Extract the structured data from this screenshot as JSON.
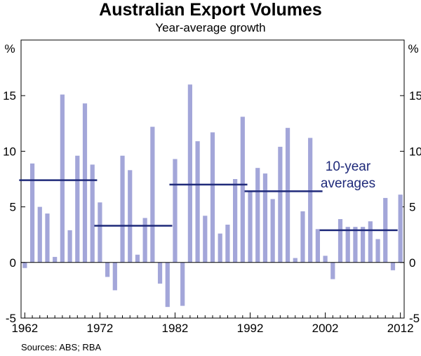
{
  "chart_data": {
    "type": "bar",
    "title": "Australian Export Volumes",
    "subtitle": "Year-average growth",
    "ylabel_left": "%",
    "ylabel_right": "%",
    "ylim": [
      -5,
      20
    ],
    "yticks": [
      -5,
      0,
      5,
      10,
      15
    ],
    "xlim": [
      1961.5,
      2012.5
    ],
    "xticks": [
      1962,
      1972,
      1982,
      1992,
      2002,
      2012
    ],
    "xtick_labels": [
      "1962",
      "1972",
      "1982",
      "1992",
      "2002",
      "2012"
    ],
    "series": [
      {
        "name": "Year-average growth",
        "color": "#a3a6d9",
        "x": [
          1962,
          1963,
          1964,
          1965,
          1966,
          1967,
          1968,
          1969,
          1970,
          1971,
          1972,
          1973,
          1974,
          1975,
          1976,
          1977,
          1978,
          1979,
          1980,
          1981,
          1982,
          1983,
          1984,
          1985,
          1986,
          1987,
          1988,
          1989,
          1990,
          1991,
          1992,
          1993,
          1994,
          1995,
          1996,
          1997,
          1998,
          1999,
          2000,
          2001,
          2002,
          2003,
          2004,
          2005,
          2006,
          2007,
          2008,
          2009,
          2010,
          2011,
          2012
        ],
        "values": [
          -0.5,
          8.9,
          5.0,
          4.4,
          0.5,
          15.1,
          2.9,
          9.6,
          14.3,
          8.8,
          5.4,
          -1.3,
          -2.5,
          9.6,
          8.3,
          0.7,
          4.0,
          12.2,
          -1.9,
          -4.0,
          9.3,
          -3.9,
          16.0,
          10.9,
          4.2,
          11.7,
          2.6,
          3.4,
          7.5,
          13.1,
          6.4,
          8.5,
          8.0,
          5.7,
          10.4,
          12.1,
          0.4,
          4.6,
          11.2,
          3.0,
          0.6,
          -1.5,
          3.9,
          3.2,
          3.2,
          3.2,
          3.7,
          2.1,
          5.8,
          -0.7,
          6.1
        ]
      },
      {
        "name": "10-year averages",
        "color": "#1f2a7a",
        "segments": [
          {
            "start": 1962,
            "end": 1972,
            "value": 7.4
          },
          {
            "start": 1972,
            "end": 1982,
            "value": 3.3
          },
          {
            "start": 1982,
            "end": 1992,
            "value": 7.0
          },
          {
            "start": 1992,
            "end": 2002,
            "value": 6.4
          },
          {
            "start": 2002,
            "end": 2012,
            "value": 2.9
          }
        ]
      }
    ],
    "annotation": {
      "line1": "10-year",
      "line2": "averages",
      "color": "#1f2a7a"
    }
  },
  "source_text": "Sources: ABS; RBA"
}
